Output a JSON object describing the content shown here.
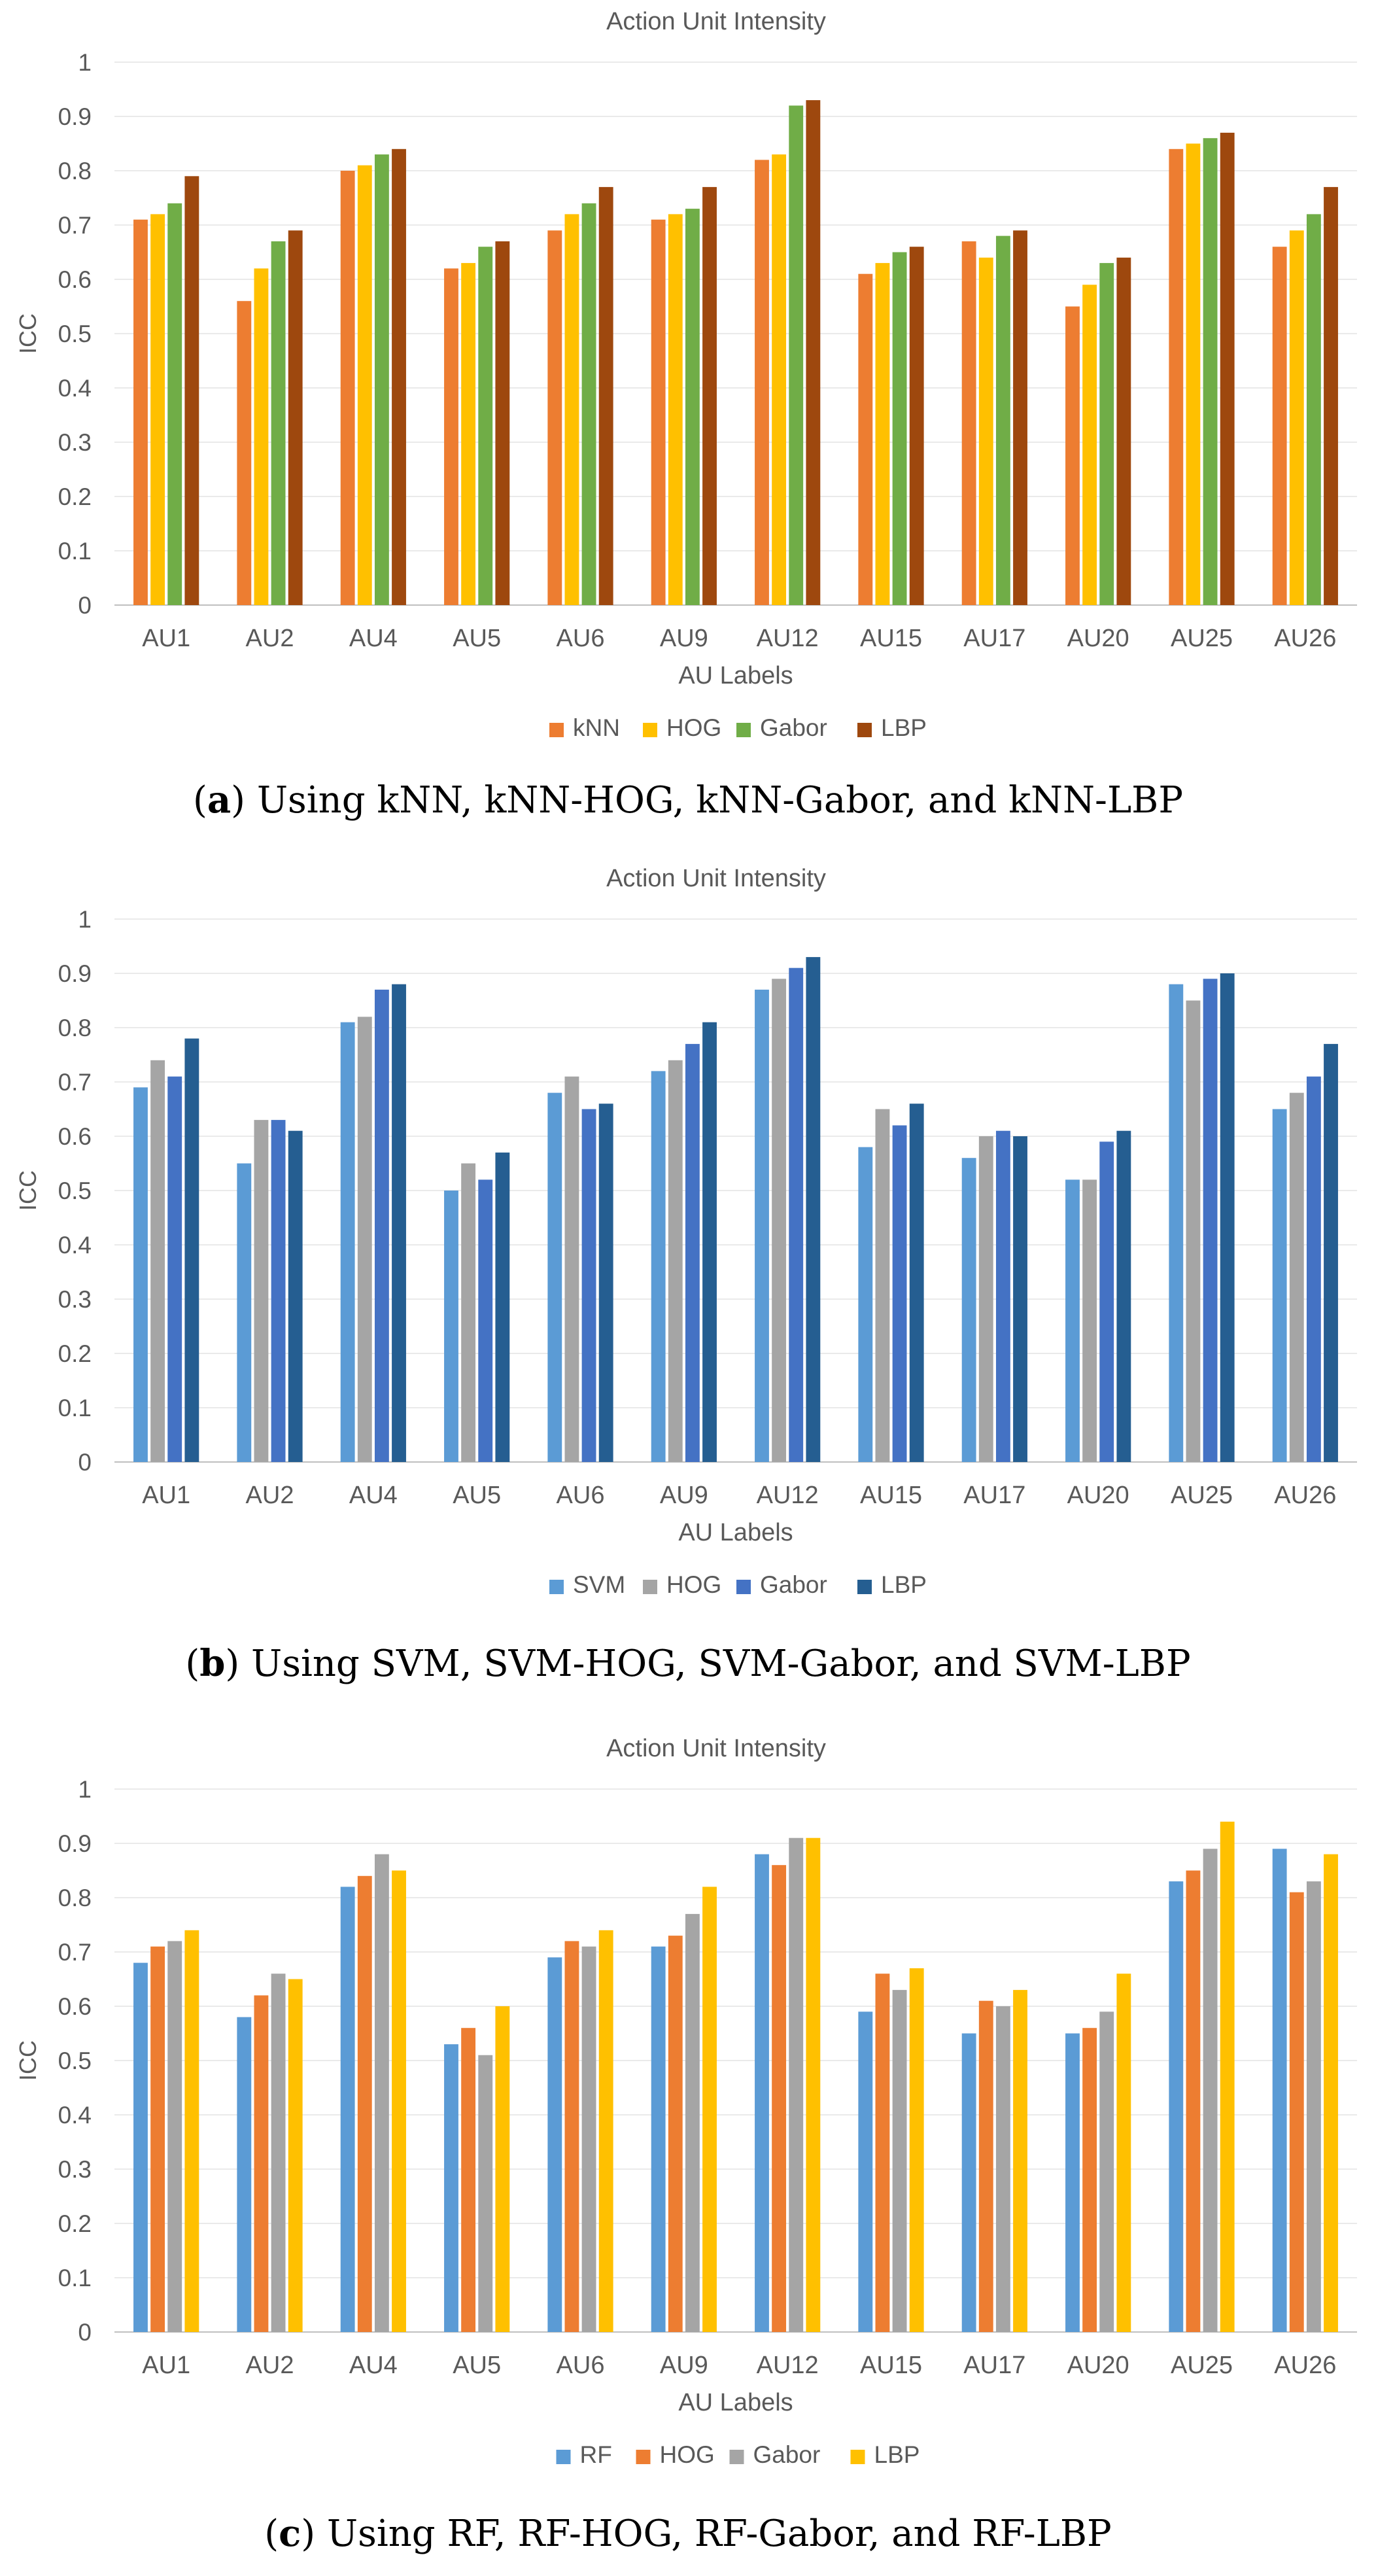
{
  "categories": [
    "AU1",
    "AU2",
    "AU4",
    "AU5",
    "AU6",
    "AU9",
    "AU12",
    "AU15",
    "AU17",
    "AU20",
    "AU25",
    "AU26"
  ],
  "chart_data": [
    {
      "type": "bar",
      "title": "Action Unit Intensity",
      "xlabel": "AU Labels",
      "ylabel": "ICC",
      "ylim": [
        0,
        1
      ],
      "yticks": [
        "0",
        "0.1",
        "0.2",
        "0.3",
        "0.4",
        "0.5",
        "0.6",
        "0.7",
        "0.8",
        "0.9",
        "1"
      ],
      "legend_position": "bottom",
      "categories": [
        "AU1",
        "AU2",
        "AU4",
        "AU5",
        "AU6",
        "AU9",
        "AU12",
        "AU15",
        "AU17",
        "AU20",
        "AU25",
        "AU26"
      ],
      "series": [
        {
          "name": "kNN",
          "color": "#ED7D31",
          "values": [
            0.71,
            0.56,
            0.8,
            0.62,
            0.69,
            0.71,
            0.82,
            0.61,
            0.67,
            0.55,
            0.84,
            0.66
          ]
        },
        {
          "name": "HOG",
          "color": "#FFC000",
          "values": [
            0.72,
            0.62,
            0.81,
            0.63,
            0.72,
            0.72,
            0.83,
            0.63,
            0.64,
            0.59,
            0.85,
            0.69
          ]
        },
        {
          "name": "Gabor",
          "color": "#70AD47",
          "values": [
            0.74,
            0.67,
            0.83,
            0.66,
            0.74,
            0.73,
            0.92,
            0.65,
            0.68,
            0.63,
            0.86,
            0.72
          ]
        },
        {
          "name": "LBP",
          "color": "#9E480E",
          "values": [
            0.79,
            0.69,
            0.84,
            0.67,
            0.77,
            0.77,
            0.93,
            0.66,
            0.69,
            0.64,
            0.87,
            0.77
          ]
        }
      ],
      "caption_label": "a",
      "caption_text": "Using kNN, kNN-HOG, kNN-Gabor, and kNN-LBP"
    },
    {
      "type": "bar",
      "title": "Action Unit Intensity",
      "xlabel": "AU Labels",
      "ylabel": "ICC",
      "ylim": [
        0,
        1
      ],
      "yticks": [
        "0",
        "0.1",
        "0.2",
        "0.3",
        "0.4",
        "0.5",
        "0.6",
        "0.7",
        "0.8",
        "0.9",
        "1"
      ],
      "legend_position": "bottom",
      "categories": [
        "AU1",
        "AU2",
        "AU4",
        "AU5",
        "AU6",
        "AU9",
        "AU12",
        "AU15",
        "AU17",
        "AU20",
        "AU25",
        "AU26"
      ],
      "series": [
        {
          "name": "SVM",
          "color": "#5B9BD5",
          "values": [
            0.69,
            0.55,
            0.81,
            0.5,
            0.68,
            0.72,
            0.87,
            0.58,
            0.56,
            0.52,
            0.88,
            0.65
          ]
        },
        {
          "name": "HOG",
          "color": "#A5A5A5",
          "values": [
            0.74,
            0.63,
            0.82,
            0.55,
            0.71,
            0.74,
            0.89,
            0.65,
            0.6,
            0.52,
            0.85,
            0.68
          ]
        },
        {
          "name": "Gabor",
          "color": "#4472C4",
          "values": [
            0.71,
            0.63,
            0.87,
            0.52,
            0.65,
            0.77,
            0.91,
            0.62,
            0.61,
            0.59,
            0.89,
            0.71
          ]
        },
        {
          "name": "LBP",
          "color": "#255E91",
          "values": [
            0.78,
            0.61,
            0.88,
            0.57,
            0.66,
            0.81,
            0.93,
            0.66,
            0.6,
            0.61,
            0.9,
            0.77
          ]
        }
      ],
      "caption_label": "b",
      "caption_text": "Using SVM, SVM-HOG, SVM-Gabor, and SVM-LBP"
    },
    {
      "type": "bar",
      "title": "Action Unit Intensity",
      "xlabel": "AU Labels",
      "ylabel": "ICC",
      "ylim": [
        0,
        1
      ],
      "yticks": [
        "0",
        "0.1",
        "0.2",
        "0.3",
        "0.4",
        "0.5",
        "0.6",
        "0.7",
        "0.8",
        "0.9",
        "1"
      ],
      "legend_position": "bottom",
      "categories": [
        "AU1",
        "AU2",
        "AU4",
        "AU5",
        "AU6",
        "AU9",
        "AU12",
        "AU15",
        "AU17",
        "AU20",
        "AU25",
        "AU26"
      ],
      "series": [
        {
          "name": "RF",
          "color": "#5B9BD5",
          "values": [
            0.68,
            0.58,
            0.82,
            0.53,
            0.69,
            0.71,
            0.88,
            0.59,
            0.55,
            0.55,
            0.83,
            0.89
          ]
        },
        {
          "name": "HOG",
          "color": "#ED7D31",
          "values": [
            0.71,
            0.62,
            0.84,
            0.56,
            0.72,
            0.73,
            0.86,
            0.66,
            0.61,
            0.56,
            0.85,
            0.81
          ]
        },
        {
          "name": "Gabor",
          "color": "#A5A5A5",
          "values": [
            0.72,
            0.66,
            0.88,
            0.51,
            0.71,
            0.77,
            0.91,
            0.63,
            0.6,
            0.59,
            0.89,
            0.83
          ]
        },
        {
          "name": "LBP",
          "color": "#FFC000",
          "values": [
            0.74,
            0.65,
            0.85,
            0.6,
            0.74,
            0.82,
            0.91,
            0.67,
            0.63,
            0.66,
            0.94,
            0.88
          ]
        }
      ],
      "caption_label": "c",
      "caption_text": "Using RF, RF-HOG, RF-Gabor, and RF-LBP"
    }
  ]
}
